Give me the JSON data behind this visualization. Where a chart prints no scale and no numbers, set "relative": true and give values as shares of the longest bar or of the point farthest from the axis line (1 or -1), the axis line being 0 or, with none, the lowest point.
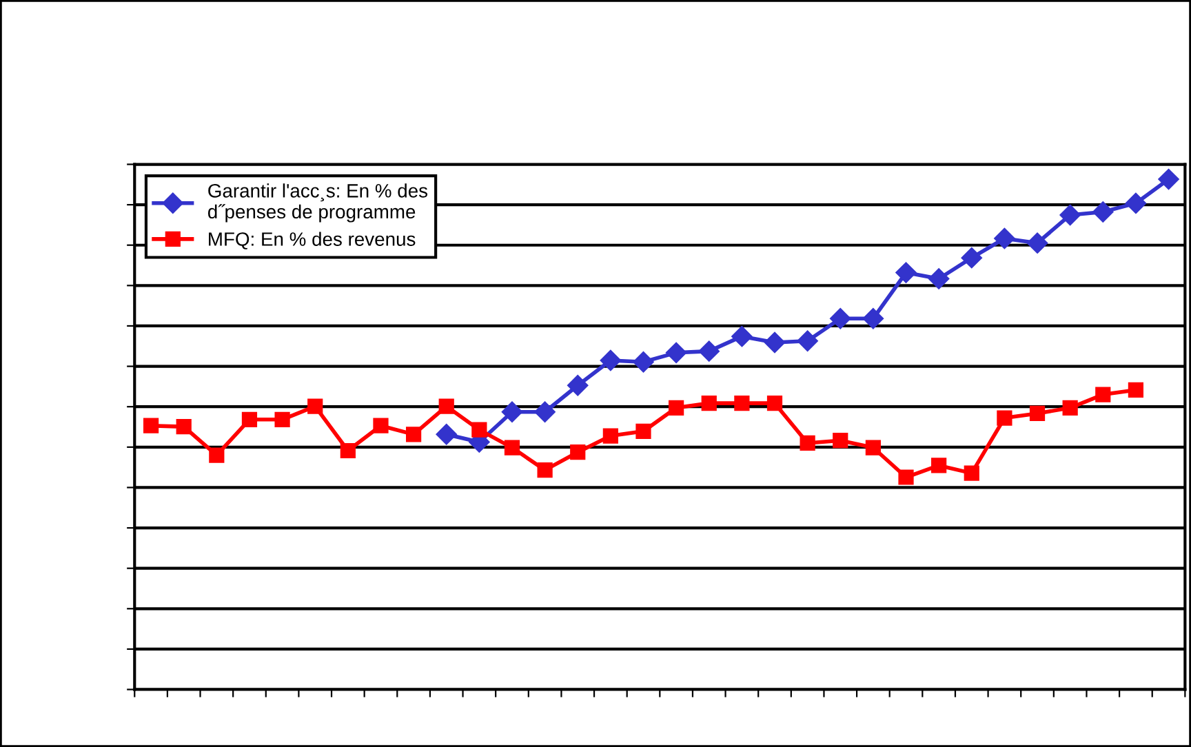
{
  "chart_data": {
    "type": "line",
    "relative": true,
    "grid": "y",
    "legend": "top left",
    "categories": [
      null,
      null,
      null,
      null,
      null,
      null,
      null,
      null,
      null,
      null,
      null,
      null,
      null,
      null,
      null,
      null,
      null,
      null,
      null,
      null,
      null,
      null,
      null,
      null,
      null,
      null,
      null,
      null,
      null,
      null,
      null,
      null
    ],
    "series": [
      {
        "name": "Garantir l'acc¸s: En % des\nd˝penses de programme",
        "color": "#3333cc",
        "marker": "diamond",
        "values": [
          null,
          null,
          null,
          null,
          null,
          null,
          null,
          null,
          null,
          0.5,
          0.485,
          0.544,
          0.544,
          0.596,
          0.645,
          0.642,
          0.66,
          0.663,
          0.692,
          0.68,
          0.683,
          0.727,
          0.727,
          0.817,
          0.805,
          0.846,
          0.884,
          0.875,
          0.93,
          0.936,
          0.953,
          1.0
        ]
      },
      {
        "name": "MFQ: En % des revenus",
        "color": "#ff0000",
        "marker": "square",
        "values": [
          0.517,
          0.515,
          0.459,
          0.529,
          0.529,
          0.555,
          0.468,
          0.517,
          0.5,
          0.555,
          0.509,
          0.474,
          0.43,
          0.465,
          0.497,
          0.506,
          0.552,
          0.561,
          0.561,
          0.561,
          0.483,
          0.488,
          0.474,
          0.416,
          0.439,
          0.424,
          0.532,
          0.541,
          0.552,
          0.578,
          0.587,
          null
        ]
      }
    ]
  }
}
